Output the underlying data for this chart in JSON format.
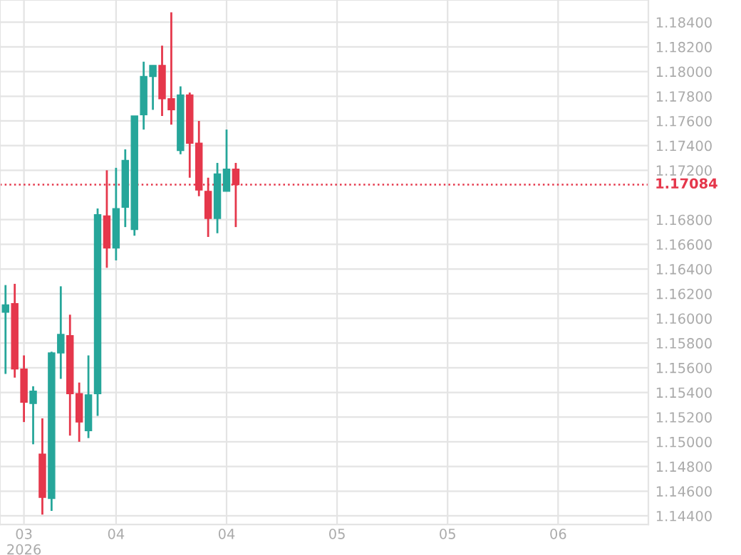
{
  "chart_data": {
    "type": "candlestick",
    "categories": [
      null,
      null,
      "03\n2026",
      null,
      null,
      null,
      null,
      null,
      null,
      null,
      null,
      null,
      "04",
      null,
      null,
      null,
      null,
      null,
      null,
      null,
      null,
      null,
      null,
      null,
      "04",
      null,
      null,
      null,
      null,
      null,
      null,
      null,
      null,
      null,
      null,
      null,
      "05",
      null,
      null,
      null,
      null,
      null,
      null,
      null,
      null,
      null,
      null,
      null,
      "05",
      null,
      null,
      null,
      null,
      null,
      null,
      null,
      null,
      null,
      null,
      null,
      "06",
      null,
      null,
      null,
      null,
      null,
      null,
      null,
      null,
      null
    ],
    "ohlc": [
      [
        1.1605,
        1.1627,
        1.1555,
        1.1611
      ],
      [
        1.1612,
        1.1628,
        1.1552,
        1.1559
      ],
      [
        1.1559,
        1.157,
        1.1516,
        1.1532
      ],
      [
        1.1531,
        1.1545,
        1.1498,
        1.1541
      ],
      [
        1.149,
        1.1519,
        1.1441,
        1.1455
      ],
      [
        1.1454,
        1.1573,
        1.1444,
        1.1572
      ],
      [
        1.1572,
        1.1626,
        1.1551,
        1.1587
      ],
      [
        1.1586,
        1.1603,
        1.1505,
        1.1539
      ],
      [
        1.1539,
        1.1548,
        1.15,
        1.1516
      ],
      [
        1.1509,
        1.157,
        1.1503,
        1.1538
      ],
      [
        1.1539,
        1.1689,
        1.1521,
        1.1684
      ],
      [
        1.1683,
        1.172,
        1.1641,
        1.1657
      ],
      [
        1.1657,
        1.1722,
        1.1647,
        1.1689
      ],
      [
        1.169,
        1.1737,
        1.1674,
        1.1728
      ],
      [
        1.1672,
        1.1764,
        1.1667,
        1.1764
      ],
      [
        1.1765,
        1.1808,
        1.1753,
        1.1796
      ],
      [
        1.1796,
        1.1805,
        1.1769,
        1.1805
      ],
      [
        1.1805,
        1.1821,
        1.1764,
        1.1778
      ],
      [
        1.1778,
        1.1848,
        1.1757,
        1.1769
      ],
      [
        1.1736,
        1.1788,
        1.1733,
        1.1781
      ],
      [
        1.1781,
        1.1783,
        1.1714,
        1.1742
      ],
      [
        1.1742,
        1.176,
        1.1699,
        1.1704
      ],
      [
        1.1703,
        1.1714,
        1.1666,
        1.1681
      ],
      [
        1.1681,
        1.1726,
        1.1669,
        1.1717
      ],
      [
        1.1703,
        1.1753,
        1.1703,
        1.1721
      ],
      [
        1.1721,
        1.1726,
        1.1674,
        1.17084
      ],
      null,
      null,
      null,
      null,
      null,
      null,
      null,
      null,
      null,
      null,
      null,
      null,
      null,
      null,
      null,
      null,
      null,
      null,
      null,
      null,
      null,
      null,
      null,
      null,
      null,
      null,
      null,
      null,
      null,
      null,
      null,
      null,
      null,
      null,
      null,
      null,
      null,
      null,
      null,
      null,
      null,
      null,
      null,
      null
    ],
    "colors": [
      "#26a69a",
      "#e5374b",
      "#e5374b",
      "#26a69a",
      "#e5374b",
      "#26a69a",
      "#26a69a",
      "#e5374b",
      "#e5374b",
      "#26a69a",
      "#26a69a",
      "#e5374b",
      "#26a69a",
      "#26a69a",
      "#26a69a",
      "#26a69a",
      "#26a69a",
      "#e5374b",
      "#e5374b",
      "#26a69a",
      "#e5374b",
      "#e5374b",
      "#e5374b",
      "#26a69a",
      "#26a69a",
      "#e5374b",
      null,
      null,
      null,
      null,
      null,
      null,
      null,
      null,
      null,
      null,
      null,
      null,
      null,
      null,
      null,
      null,
      null,
      null,
      null,
      null,
      null,
      null,
      null,
      null,
      null,
      null,
      null,
      null,
      null,
      null,
      null,
      null,
      null,
      null,
      null,
      null,
      null,
      null,
      null,
      null,
      null,
      null,
      null,
      null
    ],
    "ylim": [
      1.1433,
      1.1858
    ],
    "yticks": [
      {
        "value": 1.144,
        "label": "1.14400"
      },
      {
        "value": 1.146,
        "label": "1.14600"
      },
      {
        "value": 1.148,
        "label": "1.14800"
      },
      {
        "value": 1.15,
        "label": "1.15000"
      },
      {
        "value": 1.152,
        "label": "1.15200"
      },
      {
        "value": 1.154,
        "label": "1.15400"
      },
      {
        "value": 1.156,
        "label": "1.15600"
      },
      {
        "value": 1.158,
        "label": "1.15800"
      },
      {
        "value": 1.16,
        "label": "1.16000"
      },
      {
        "value": 1.162,
        "label": "1.16200"
      },
      {
        "value": 1.164,
        "label": "1.16400"
      },
      {
        "value": 1.166,
        "label": "1.16600"
      },
      {
        "value": 1.168,
        "label": "1.16800"
      },
      {
        "value": 1.172,
        "label": "1.17200"
      },
      {
        "value": 1.174,
        "label": "1.17400"
      },
      {
        "value": 1.176,
        "label": "1.17600"
      },
      {
        "value": 1.178,
        "label": "1.17800"
      },
      {
        "value": 1.18,
        "label": "1.18000"
      },
      {
        "value": 1.182,
        "label": "1.18200"
      },
      {
        "value": 1.184,
        "label": "1.18400"
      }
    ],
    "ref_lines": [
      {
        "axis": "y",
        "value": 1.17084,
        "label": "1.17084",
        "color": "#e5374b",
        "line_style": "dotted"
      }
    ],
    "grid": true
  }
}
